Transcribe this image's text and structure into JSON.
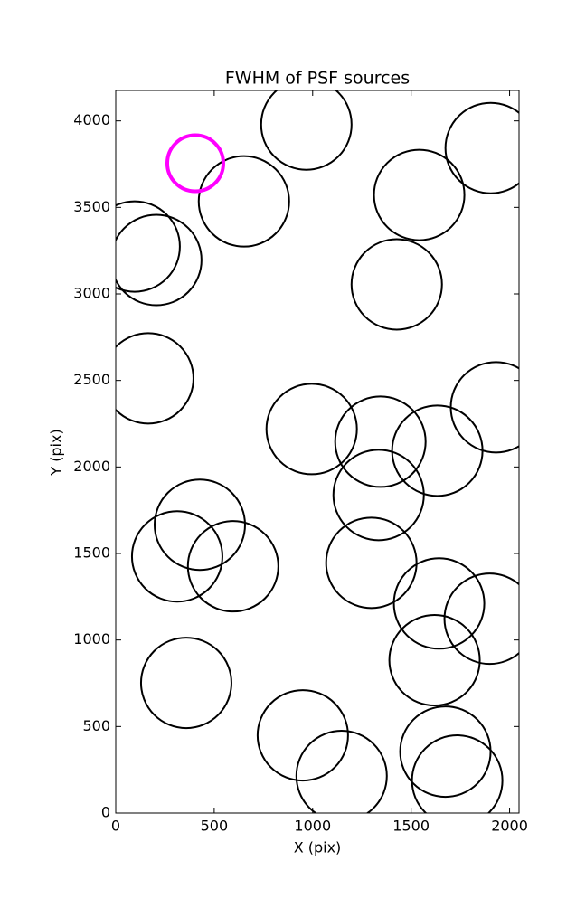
{
  "chart_data": {
    "type": "scatter",
    "title": "FWHM of PSF sources",
    "x_label": "X (pix)",
    "y_label": "Y (pix)",
    "xlim": [
      0,
      2048
    ],
    "ylim": [
      0,
      4176
    ],
    "xticks": [
      0,
      500,
      1000,
      1500,
      2000
    ],
    "yticks": [
      0,
      500,
      1000,
      1500,
      2000,
      2500,
      3000,
      3500,
      4000
    ],
    "grid": false,
    "series": [
      {
        "color": "#000000",
        "line_width": 2,
        "x": [
          968,
          1904,
          651,
          1541,
          96,
          206,
          1427,
          165,
          1931,
          995,
          1344,
          1633,
          1335,
          427,
          312,
          596,
          1298,
          1642,
          1899,
          1619,
          358,
          950,
          1674,
          1147,
          1734
        ],
        "y": [
          3979,
          3843,
          3535,
          3572,
          3274,
          3196,
          3055,
          2512,
          2345,
          2219,
          2146,
          2094,
          1838,
          1666,
          1483,
          1426,
          1446,
          1211,
          1123,
          883,
          752,
          449,
          355,
          214,
          188
        ],
        "sizes": [
          50,
          50,
          50,
          50,
          50,
          50,
          50,
          50,
          50,
          50,
          50,
          50,
          50,
          50,
          50,
          50,
          50,
          50,
          50,
          50,
          50,
          50,
          50,
          50,
          50
        ]
      },
      {
        "color": "#ff00ff",
        "line_width": 4,
        "x": [
          404
        ],
        "y": [
          3755
        ],
        "sizes": [
          31
        ]
      }
    ]
  }
}
